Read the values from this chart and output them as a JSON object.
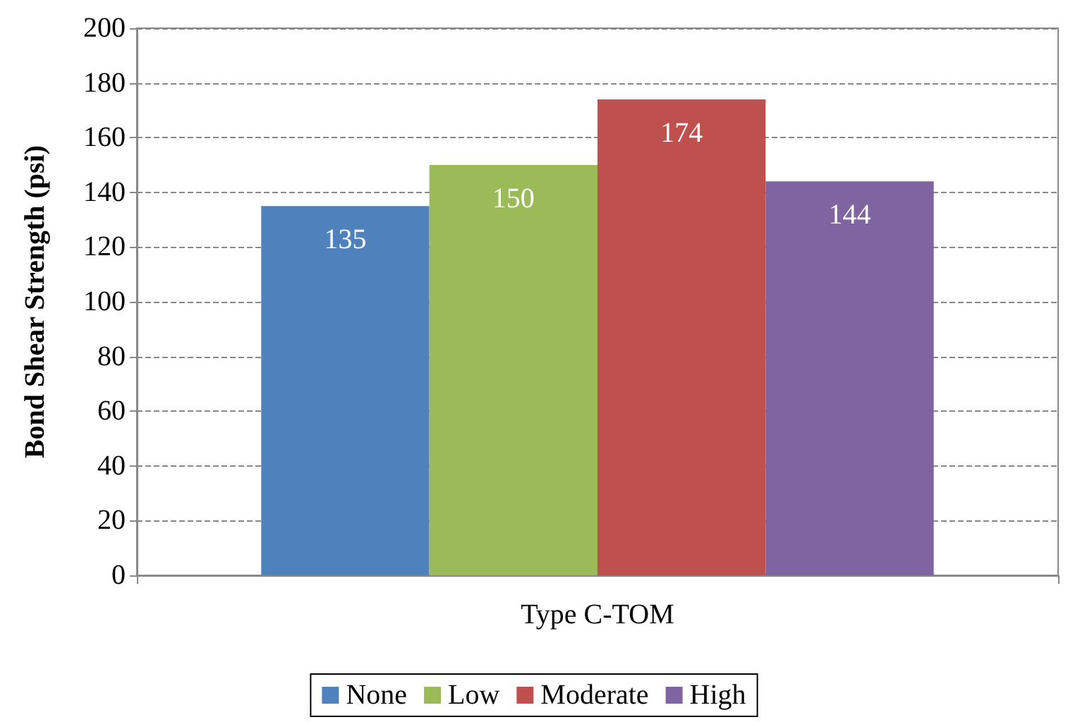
{
  "chart_data": {
    "type": "bar",
    "ylabel": "Bond Shear Strength (psi)",
    "categories": [
      "Type C-TOM"
    ],
    "series": [
      {
        "name": "None",
        "color": "#4f81bd",
        "values": [
          135
        ]
      },
      {
        "name": "Low",
        "color": "#9bbb59",
        "values": [
          150
        ]
      },
      {
        "name": "Moderate",
        "color": "#c0504d",
        "values": [
          174
        ]
      },
      {
        "name": "High",
        "color": "#8064a2",
        "values": [
          144
        ]
      }
    ],
    "ylim": [
      0,
      200
    ],
    "yticks": [
      0,
      20,
      40,
      60,
      80,
      100,
      120,
      140,
      160,
      180,
      200
    ],
    "grid": "y",
    "legend": "bottom",
    "data_labels": true
  }
}
